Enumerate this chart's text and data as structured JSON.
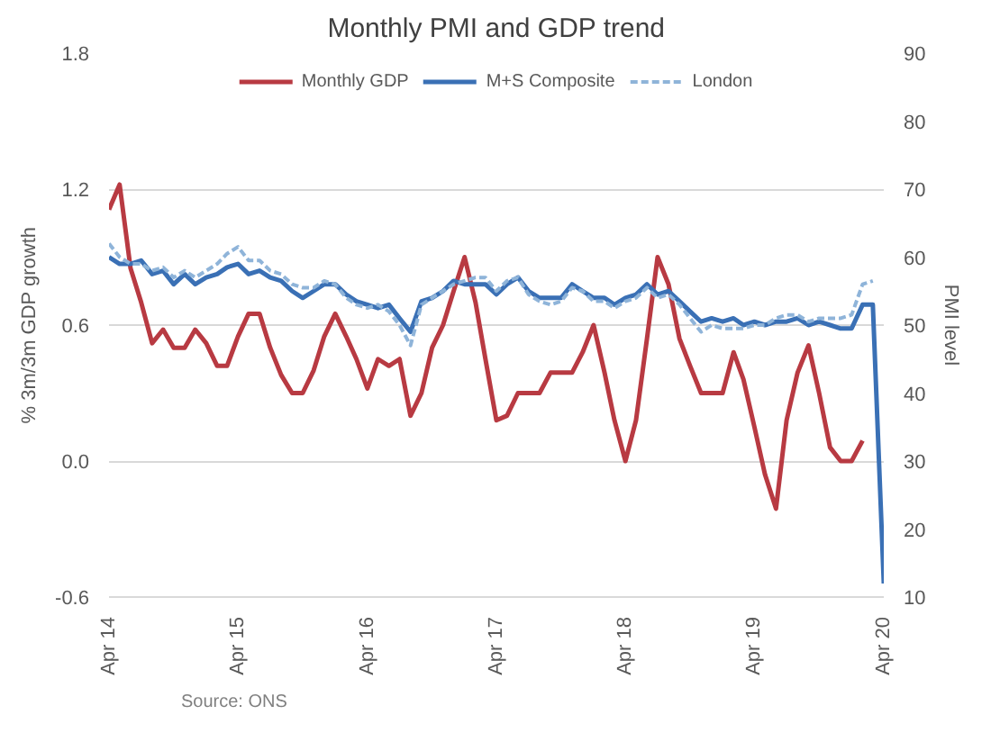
{
  "chart_data": {
    "type": "line",
    "title": "Monthly PMI and GDP trend",
    "ylabel": "% 3m/3m GDP growth",
    "y2label": "PMI level",
    "x": [
      "2014-04",
      "2014-05",
      "2014-06",
      "2014-07",
      "2014-08",
      "2014-09",
      "2014-10",
      "2014-11",
      "2014-12",
      "2015-01",
      "2015-02",
      "2015-03",
      "2015-04",
      "2015-05",
      "2015-06",
      "2015-07",
      "2015-08",
      "2015-09",
      "2015-10",
      "2015-11",
      "2015-12",
      "2016-01",
      "2016-02",
      "2016-03",
      "2016-04",
      "2016-05",
      "2016-06",
      "2016-07",
      "2016-08",
      "2016-09",
      "2016-10",
      "2016-11",
      "2016-12",
      "2017-01",
      "2017-02",
      "2017-03",
      "2017-04",
      "2017-05",
      "2017-06",
      "2017-07",
      "2017-08",
      "2017-09",
      "2017-10",
      "2017-11",
      "2017-12",
      "2018-01",
      "2018-02",
      "2018-03",
      "2018-04",
      "2018-05",
      "2018-06",
      "2018-07",
      "2018-08",
      "2018-09",
      "2018-10",
      "2018-11",
      "2018-12",
      "2019-01",
      "2019-02",
      "2019-03",
      "2019-04",
      "2019-05",
      "2019-06",
      "2019-07",
      "2019-08",
      "2019-09",
      "2019-10",
      "2019-11",
      "2019-12",
      "2020-01",
      "2020-02",
      "2020-03",
      "2020-04"
    ],
    "series": [
      {
        "name": "Monthly GDP",
        "color": "#b83a42",
        "values": [
          1.11,
          1.22,
          0.85,
          0.7,
          0.52,
          0.58,
          0.5,
          0.5,
          0.58,
          0.52,
          0.42,
          0.42,
          0.55,
          0.65,
          0.65,
          0.5,
          0.38,
          0.3,
          0.3,
          0.4,
          0.55,
          0.65,
          0.55,
          0.45,
          0.32,
          0.45,
          0.42,
          0.45,
          0.2,
          0.3,
          0.5,
          0.6,
          0.75,
          0.9,
          0.7,
          0.45,
          0.18,
          0.2,
          0.3,
          0.3,
          0.3,
          0.39,
          0.39,
          0.39,
          0.48,
          0.6,
          0.39,
          0.18,
          0.0,
          0.18,
          0.54,
          0.9,
          0.78,
          0.54,
          0.42,
          0.3,
          0.3,
          0.3,
          0.48,
          0.36,
          0.15,
          -0.06,
          -0.21,
          0.18,
          0.39,
          0.51,
          0.3,
          0.06,
          0.0,
          0.0,
          0.09,
          null,
          null
        ]
      },
      {
        "name": "M+S Composite",
        "color": "#3a70b5",
        "axis": "y2",
        "values": [
          60,
          59,
          59,
          59.5,
          57.5,
          58,
          56,
          57.5,
          56,
          57,
          57.5,
          58.5,
          59,
          57.5,
          58,
          57,
          56.5,
          55,
          54,
          55,
          56,
          56,
          54.5,
          53.5,
          53,
          52.5,
          53,
          51,
          49,
          53.5,
          54,
          55,
          56.5,
          56,
          56,
          56,
          54.5,
          56,
          57,
          55,
          54,
          54,
          54,
          56,
          55,
          54,
          54,
          53,
          54,
          54.5,
          56,
          54.5,
          55,
          53.5,
          52,
          50.5,
          51,
          50.5,
          51,
          50,
          50.5,
          50,
          50.5,
          50.5,
          51,
          50,
          50.5,
          50,
          49.5,
          49.5,
          53,
          53,
          12
        ]
      },
      {
        "name": "London",
        "color": "#8fb4d9",
        "axis": "y2",
        "line_style": "dashed",
        "values": [
          62,
          60,
          59,
          59,
          58,
          58.5,
          57,
          58,
          57,
          58,
          59,
          60.5,
          61.5,
          59.5,
          59.5,
          58,
          57.5,
          56,
          55.5,
          55.5,
          56.5,
          56,
          54,
          53,
          52.5,
          53,
          52,
          50,
          47,
          53,
          54,
          55,
          56,
          56.5,
          57,
          57,
          55,
          56.5,
          57,
          54.5,
          53.5,
          53,
          53.5,
          55.5,
          55,
          53.5,
          53.5,
          52.5,
          53.5,
          54,
          55.5,
          54,
          54.5,
          53,
          51,
          49,
          50,
          49.5,
          49.5,
          49.5,
          50,
          50,
          51,
          51.5,
          51.5,
          50.5,
          51,
          51,
          51,
          51.5,
          56,
          56.5,
          null
        ]
      }
    ],
    "xlim": [
      "2014-04",
      "2020-04"
    ],
    "xticks": [
      {
        "value": "2014-04",
        "label": "Apr 14"
      },
      {
        "value": "2015-04",
        "label": "Apr 15"
      },
      {
        "value": "2016-04",
        "label": "Apr 16"
      },
      {
        "value": "2017-04",
        "label": "Apr 17"
      },
      {
        "value": "2018-04",
        "label": "Apr 18"
      },
      {
        "value": "2019-04",
        "label": "Apr 19"
      },
      {
        "value": "2020-04",
        "label": "Apr 20"
      }
    ],
    "ylim": [
      -0.6,
      1.8
    ],
    "yticks": [
      {
        "value": -0.6,
        "label": "-0.6"
      },
      {
        "value": 0,
        "label": "0.0"
      },
      {
        "value": 0.6,
        "label": "0.6"
      },
      {
        "value": 1.2,
        "label": "1.2"
      },
      {
        "value": 1.8,
        "label": "1.8"
      }
    ],
    "y2lim": [
      10,
      90
    ],
    "y2ticks": [
      10,
      20,
      30,
      40,
      50,
      60,
      70,
      80,
      90
    ],
    "grid": "y",
    "legend": "top",
    "line_style": "solid",
    "marker": "none",
    "annotations": [
      "Source: ONS"
    ]
  }
}
